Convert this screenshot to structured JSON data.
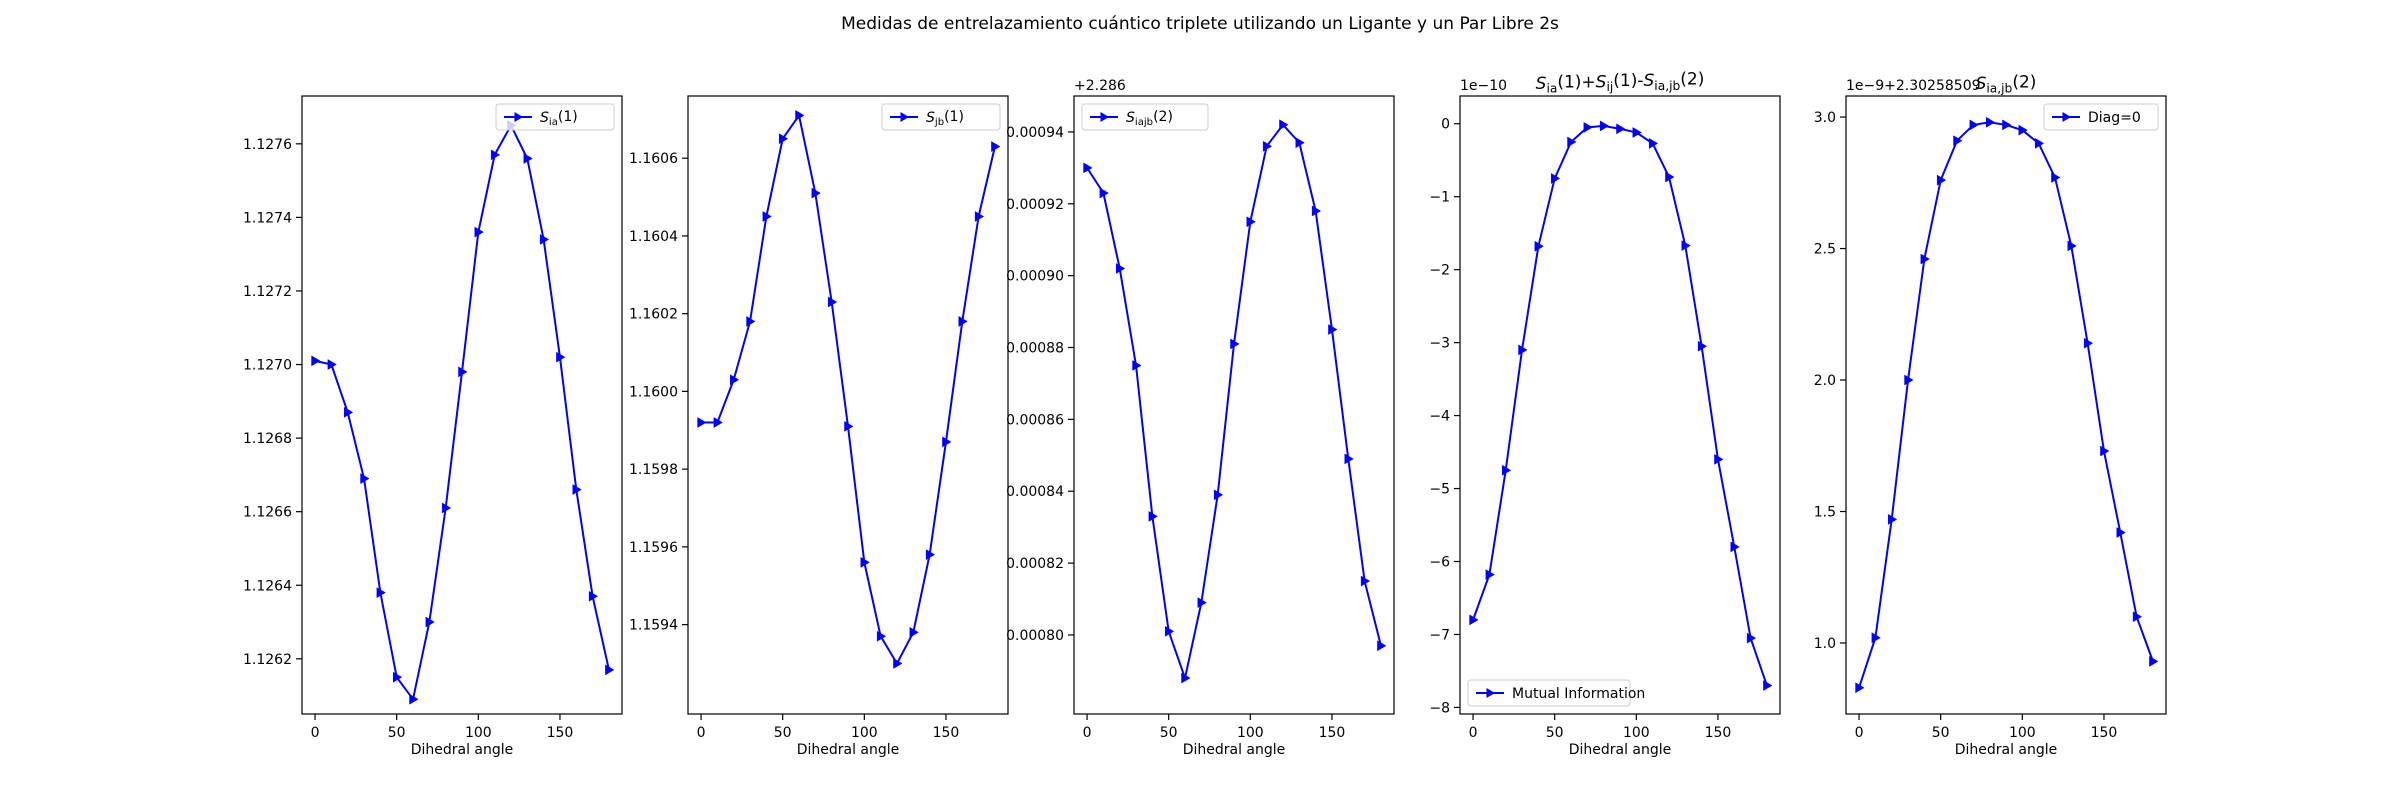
{
  "figure": {
    "suptitle": "Medidas de entrelazamiento cuántico triplete utilizando un Ligante y un Par Libre 2s"
  },
  "colors": {
    "series": "#0000ff",
    "axes": "#000000",
    "legend_border": "#cccccc"
  },
  "chart_data": [
    {
      "type": "line",
      "title": "",
      "xlabel": "Dihedral angle",
      "ylabel": "",
      "marker": "triangle-right",
      "offset_text": "",
      "xlim": [
        -8,
        188
      ],
      "ylim": [
        1.12605,
        1.12773
      ],
      "xticks": [
        0,
        50,
        100,
        150
      ],
      "yticks": [
        1.1262,
        1.1264,
        1.1266,
        1.1268,
        1.127,
        1.1272,
        1.1274,
        1.1276
      ],
      "ytick_labels": [
        "1.1262",
        "1.1264",
        "1.1266",
        "1.1268",
        "1.1270",
        "1.1272",
        "1.1274",
        "1.1276"
      ],
      "legend_position": "top-right",
      "series": [
        {
          "name": "S_ia(1)",
          "x": [
            0,
            10,
            20,
            30,
            40,
            50,
            60,
            70,
            80,
            90,
            100,
            110,
            120,
            130,
            140,
            150,
            160,
            170,
            180
          ],
          "values": [
            1.12701,
            1.127,
            1.12687,
            1.12669,
            1.12638,
            1.12615,
            1.12609,
            1.1263,
            1.12661,
            1.12698,
            1.12736,
            1.12757,
            1.12765,
            1.12756,
            1.12734,
            1.12702,
            1.12666,
            1.12637,
            1.12617
          ]
        }
      ]
    },
    {
      "type": "line",
      "title": "",
      "xlabel": "Dihedral angle",
      "ylabel": "",
      "marker": "triangle-right",
      "offset_text": "",
      "xlim": [
        -8,
        188
      ],
      "ylim": [
        1.15917,
        1.16076
      ],
      "xticks": [
        0,
        50,
        100,
        150
      ],
      "yticks": [
        1.1594,
        1.1596,
        1.1598,
        1.16,
        1.1602,
        1.1604,
        1.1606
      ],
      "ytick_labels": [
        "1.1594",
        "1.1596",
        "1.1598",
        "1.1600",
        "1.1602",
        "1.1604",
        "1.1606"
      ],
      "legend_position": "top-right",
      "series": [
        {
          "name": "S_jb(1)",
          "x": [
            0,
            10,
            20,
            30,
            40,
            50,
            60,
            70,
            80,
            90,
            100,
            110,
            120,
            130,
            140,
            150,
            160,
            170,
            180
          ],
          "values": [
            1.15992,
            1.15992,
            1.16003,
            1.16018,
            1.16045,
            1.16065,
            1.16071,
            1.16051,
            1.16023,
            1.15991,
            1.15956,
            1.15937,
            1.1593,
            1.15938,
            1.15958,
            1.15987,
            1.16018,
            1.16045,
            1.16063
          ]
        }
      ]
    },
    {
      "type": "line",
      "title": "",
      "xlabel": "Dihedral angle",
      "ylabel": "",
      "marker": "triangle-right",
      "offset_text": "+2.286",
      "xlim": [
        -8,
        188
      ],
      "ylim": [
        0.000778,
        0.00095
      ],
      "xticks": [
        0,
        50,
        100,
        150
      ],
      "yticks": [
        0.0008,
        0.00082,
        0.00084,
        0.00086,
        0.00088,
        0.0009,
        0.00092,
        0.00094
      ],
      "ytick_labels": [
        "0.00080",
        "0.00082",
        "0.00084",
        "0.00086",
        "0.00088",
        "0.00090",
        "0.00092",
        "0.00094"
      ],
      "legend_position": "top-left",
      "series": [
        {
          "name": "S_iajb(2)",
          "x": [
            0,
            10,
            20,
            30,
            40,
            50,
            60,
            70,
            80,
            90,
            100,
            110,
            120,
            130,
            140,
            150,
            160,
            170,
            180
          ],
          "values": [
            0.00093,
            0.000923,
            0.000902,
            0.000875,
            0.000833,
            0.000801,
            0.000788,
            0.000809,
            0.000839,
            0.000881,
            0.000915,
            0.000936,
            0.000942,
            0.000937,
            0.000918,
            0.000885,
            0.000849,
            0.000815,
            0.000797
          ]
        }
      ]
    },
    {
      "type": "line",
      "title": "S_ia(1)+S_ij(1)-S_ia,jb(2)",
      "xlabel": "Dihedral angle",
      "ylabel": "",
      "marker": "triangle-right",
      "offset_text": "1e−10",
      "xlim": [
        -8,
        188
      ],
      "ylim": [
        -8.09,
        0.38
      ],
      "xticks": [
        0,
        50,
        100,
        150
      ],
      "yticks": [
        -8,
        -7,
        -6,
        -5,
        -4,
        -3,
        -2,
        -1,
        0
      ],
      "ytick_labels": [
        "−8",
        "−7",
        "−6",
        "−5",
        "−4",
        "−3",
        "−2",
        "−1",
        "0"
      ],
      "legend_position": "bottom-left",
      "series": [
        {
          "name": "Mutual Information",
          "x": [
            0,
            10,
            20,
            30,
            40,
            50,
            60,
            70,
            80,
            90,
            100,
            110,
            120,
            130,
            140,
            150,
            160,
            170,
            180
          ],
          "values": [
            -6.8,
            -6.18,
            -4.75,
            -3.1,
            -1.68,
            -0.75,
            -0.25,
            -0.05,
            -0.03,
            -0.07,
            -0.12,
            -0.27,
            -0.73,
            -1.67,
            -3.05,
            -4.6,
            -5.8,
            -7.05,
            -7.7
          ]
        }
      ]
    },
    {
      "type": "line",
      "title": "S_ia,jb(2)",
      "xlabel": "Dihedral angle",
      "ylabel": "",
      "marker": "triangle-right",
      "offset_text": "1e−9+2.30258509",
      "xlim": [
        -8,
        188
      ],
      "ylim": [
        0.73,
        3.08
      ],
      "xticks": [
        0,
        50,
        100,
        150
      ],
      "yticks": [
        1.0,
        1.5,
        2.0,
        2.5,
        3.0
      ],
      "ytick_labels": [
        "1.0",
        "1.5",
        "2.0",
        "2.5",
        "3.0"
      ],
      "legend_position": "top-right",
      "series": [
        {
          "name": "Diag=0",
          "x": [
            0,
            10,
            20,
            30,
            40,
            50,
            60,
            70,
            80,
            90,
            100,
            110,
            120,
            130,
            140,
            150,
            160,
            170,
            180
          ],
          "values": [
            0.83,
            1.02,
            1.47,
            2.0,
            2.46,
            2.76,
            2.91,
            2.97,
            2.98,
            2.97,
            2.95,
            2.9,
            2.77,
            2.51,
            2.14,
            1.73,
            1.42,
            1.1,
            0.93
          ]
        }
      ]
    }
  ]
}
